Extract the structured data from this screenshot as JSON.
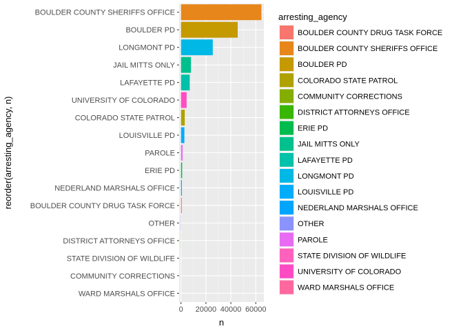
{
  "chart_data": {
    "type": "bar",
    "orientation": "horizontal",
    "xlabel": "n",
    "ylabel": "reorder(arresting_agency, n)",
    "xlim": [
      -1500,
      66500
    ],
    "xticks": [
      0,
      20000,
      40000,
      60000
    ],
    "xtick_labels": [
      "0",
      "20000",
      "40000",
      "60000"
    ],
    "grid": true,
    "legend_position": "right",
    "legend_title": "arresting_agency",
    "categories": [
      "BOULDER COUNTY SHERIFFS OFFICE",
      "BOULDER PD",
      "LONGMONT PD",
      "JAIL MITTS ONLY",
      "LAFAYETTE PD",
      "UNIVERSITY OF COLORADO",
      "COLORADO STATE PATROL",
      "LOUISVILLE PD",
      "PAROLE",
      "ERIE PD",
      "NEDERLAND MARSHALS OFFICE",
      "BOULDER COUNTY DRUG TASK FORCE",
      "OTHER",
      "DISTRICT ATTORNEYS OFFICE",
      "STATE DIVISION OF WILDLIFE",
      "COMMUNITY CORRECTIONS",
      "WARD MARSHALS OFFICE"
    ],
    "values": [
      64500,
      45500,
      25500,
      8000,
      7000,
      4500,
      3000,
      2700,
      1300,
      900,
      700,
      650,
      150,
      60,
      40,
      25,
      10
    ],
    "colors": [
      "#E7861B",
      "#C59900",
      "#00B8E5",
      "#00C08D",
      "#00C1AA",
      "#FF4CC2",
      "#AFA100",
      "#00ACFC",
      "#E86BF3",
      "#00BB4E",
      "#00A5FF",
      "#F8766D",
      "#8B93FF",
      "#39B600",
      "#FF62BC",
      "#85AD00",
      "#FF689F"
    ],
    "legend": [
      {
        "label": "BOULDER COUNTY DRUG TASK FORCE",
        "color": "#F8766D"
      },
      {
        "label": "BOULDER COUNTY SHERIFFS OFFICE",
        "color": "#E7861B"
      },
      {
        "label": "BOULDER PD",
        "color": "#C59900"
      },
      {
        "label": "COLORADO STATE PATROL",
        "color": "#AFA100"
      },
      {
        "label": "COMMUNITY CORRECTIONS",
        "color": "#85AD00"
      },
      {
        "label": "DISTRICT ATTORNEYS OFFICE",
        "color": "#39B600"
      },
      {
        "label": "ERIE PD",
        "color": "#00BB4E"
      },
      {
        "label": "JAIL MITTS ONLY",
        "color": "#00C08D"
      },
      {
        "label": "LAFAYETTE PD",
        "color": "#00C1AA"
      },
      {
        "label": "LONGMONT PD",
        "color": "#00B8E5"
      },
      {
        "label": "LOUISVILLE PD",
        "color": "#00ACFC"
      },
      {
        "label": "NEDERLAND MARSHALS OFFICE",
        "color": "#00A5FF"
      },
      {
        "label": "OTHER",
        "color": "#8B93FF"
      },
      {
        "label": "PAROLE",
        "color": "#E86BF3"
      },
      {
        "label": "STATE DIVISION OF WILDLIFE",
        "color": "#FF62BC"
      },
      {
        "label": "UNIVERSITY OF COLORADO",
        "color": "#FF4CC2"
      },
      {
        "label": "WARD MARSHALS OFFICE",
        "color": "#FF689F"
      }
    ]
  }
}
